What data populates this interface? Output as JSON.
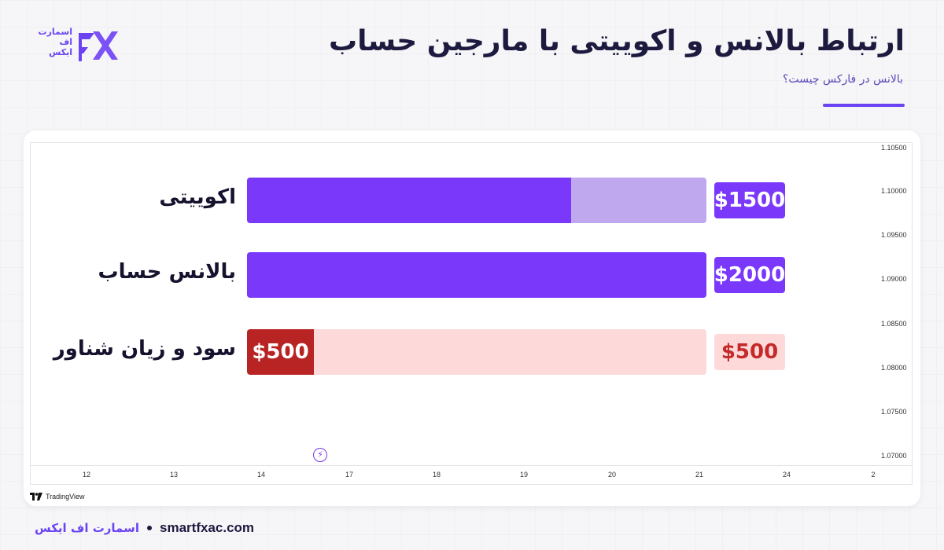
{
  "header": {
    "title": "ارتباط بالانس و اکوییتی با مارجین حساب",
    "subtitle": "بالانس در فارکس چیست؟"
  },
  "logo": {
    "text_lines": [
      "اسمارت",
      "اف",
      "ایکس"
    ]
  },
  "colors": {
    "accent": "#6b43f2",
    "purple_fill": "#7a38fb",
    "purple_light": "#bfa8ee",
    "red_fill": "#b82323",
    "red_light": "#fdd9d9",
    "red_text": "#c42a2a"
  },
  "chart_data": {
    "type": "bar",
    "rows": [
      {
        "label": "اکوییتی",
        "total": 2000,
        "filled": 1500,
        "tag": "$1500",
        "inner_label": "",
        "scheme": "purple"
      },
      {
        "label": "بالانس حساب",
        "total": 2000,
        "filled": 2000,
        "tag": "$2000",
        "inner_label": "",
        "scheme": "purple"
      },
      {
        "label": "سود و زیان شناور",
        "total": 2000,
        "filled": 500,
        "tag": "$500",
        "inner_label": "$500",
        "scheme": "red"
      }
    ],
    "price_axis": [
      "1.10500",
      "1.10000",
      "1.09500",
      "1.09000",
      "1.08500",
      "1.08000",
      "1.07500",
      "1.07000"
    ],
    "time_axis": [
      "12",
      "13",
      "14",
      "17",
      "18",
      "19",
      "20",
      "21",
      "24",
      "2"
    ]
  },
  "tradingview": {
    "label": "TradingView"
  },
  "footer": {
    "brand": "اسمارت اف ایکس",
    "site": "smartfxac.com"
  }
}
